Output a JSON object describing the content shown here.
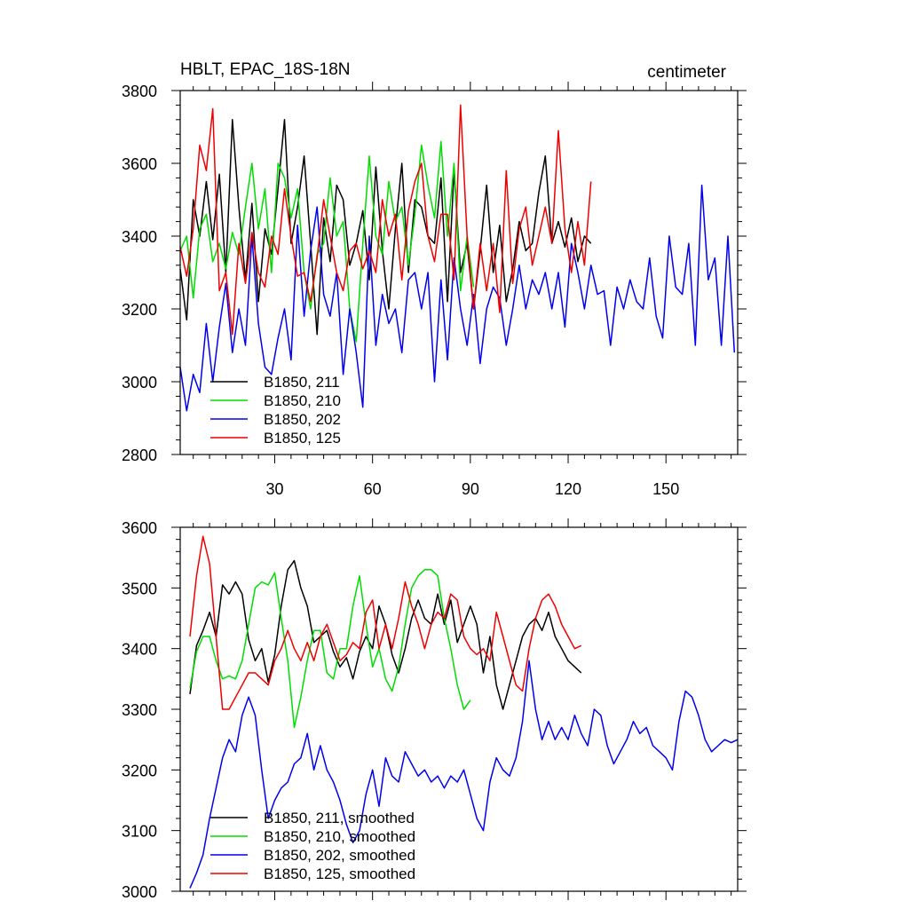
{
  "chart_data": [
    {
      "type": "line",
      "title": "HBLT, EPAC_18S-18N",
      "units_label": "centimeter",
      "xlabel": "",
      "ylabel": "",
      "xlim": [
        1,
        172
      ],
      "ylim": [
        2800,
        3800
      ],
      "x_ticks": [
        30,
        60,
        90,
        120,
        150
      ],
      "y_ticks": [
        2800,
        3000,
        3200,
        3400,
        3600,
        3800
      ],
      "legend_position": "lower-left",
      "series": [
        {
          "name": "B1850, 211",
          "color": "#000000",
          "x": [
            1,
            3,
            5,
            7,
            9,
            11,
            13,
            15,
            17,
            19,
            21,
            23,
            25,
            27,
            29,
            31,
            33,
            35,
            37,
            39,
            41,
            43,
            45,
            47,
            49,
            51,
            53,
            55,
            57,
            59,
            61,
            63,
            65,
            67,
            69,
            71,
            73,
            75,
            77,
            79,
            81,
            83,
            85,
            87,
            89,
            91,
            93,
            95,
            97,
            99,
            101,
            103,
            105,
            107,
            109,
            111,
            113,
            115,
            117,
            119,
            121,
            123,
            125,
            127
          ],
          "values": [
            3310,
            3170,
            3500,
            3400,
            3550,
            3390,
            3570,
            3300,
            3720,
            3480,
            3280,
            3490,
            3220,
            3420,
            3350,
            3530,
            3720,
            3380,
            3480,
            3620,
            3380,
            3130,
            3450,
            3330,
            3540,
            3500,
            3320,
            3380,
            3470,
            3280,
            3590,
            3360,
            3200,
            3420,
            3600,
            3300,
            3500,
            3480,
            3400,
            3380,
            3560,
            3220,
            3580,
            3300,
            3380,
            3200,
            3360,
            3540,
            3300,
            3430,
            3220,
            3310,
            3440,
            3360,
            3380,
            3520,
            3620,
            3380,
            3440,
            3370,
            3450,
            3330,
            3400,
            3380
          ]
        },
        {
          "name": "B1850, 210",
          "color": "#00dd00",
          "x": [
            1,
            3,
            5,
            7,
            9,
            11,
            13,
            15,
            17,
            19,
            21,
            23,
            25,
            27,
            29,
            31,
            33,
            35,
            37,
            39,
            41,
            43,
            45,
            47,
            49,
            51,
            53,
            55,
            57,
            59,
            61,
            63,
            65,
            67,
            69,
            71,
            73,
            75,
            77,
            79,
            81,
            83,
            85,
            87,
            89,
            91
          ],
          "values": [
            3360,
            3400,
            3230,
            3420,
            3460,
            3330,
            3380,
            3310,
            3410,
            3350,
            3480,
            3600,
            3420,
            3530,
            3300,
            3600,
            3560,
            3450,
            3530,
            3300,
            3200,
            3350,
            3380,
            3560,
            3400,
            3440,
            3200,
            3110,
            3380,
            3620,
            3400,
            3350,
            3550,
            3440,
            3480,
            3320,
            3460,
            3650,
            3540,
            3450,
            3660,
            3400,
            3600,
            3250,
            3400,
            3260
          ]
        },
        {
          "name": "B1850, 202",
          "color": "#0000ee",
          "x": [
            1,
            3,
            5,
            7,
            9,
            11,
            13,
            15,
            17,
            19,
            21,
            23,
            25,
            27,
            29,
            31,
            33,
            35,
            37,
            39,
            41,
            43,
            45,
            47,
            49,
            51,
            53,
            55,
            57,
            59,
            61,
            63,
            65,
            67,
            69,
            71,
            73,
            75,
            77,
            79,
            81,
            83,
            85,
            87,
            89,
            91,
            93,
            95,
            97,
            99,
            101,
            103,
            105,
            107,
            109,
            111,
            113,
            115,
            117,
            119,
            121,
            123,
            125,
            127,
            129,
            131,
            133,
            135,
            137,
            139,
            141,
            143,
            145,
            147,
            149,
            151,
            153,
            155,
            157,
            159,
            161,
            163,
            165,
            167,
            169,
            171
          ],
          "values": [
            3040,
            2920,
            3020,
            2970,
            3160,
            3000,
            3150,
            3270,
            3080,
            3200,
            3100,
            3400,
            3160,
            3040,
            3020,
            3120,
            3200,
            3060,
            3430,
            3180,
            3360,
            3480,
            3240,
            3180,
            3300,
            3020,
            3200,
            3080,
            2930,
            3400,
            3100,
            3240,
            3160,
            3200,
            3080,
            3280,
            3300,
            3200,
            3300,
            3000,
            3280,
            3060,
            3340,
            3200,
            3100,
            3240,
            3050,
            3200,
            3260,
            3230,
            3100,
            3200,
            3320,
            3200,
            3280,
            3240,
            3300,
            3200,
            3300,
            3150,
            3380,
            3300,
            3200,
            3320,
            3240,
            3250,
            3100,
            3260,
            3200,
            3280,
            3220,
            3200,
            3340,
            3180,
            3120,
            3400,
            3260,
            3240,
            3380,
            3100,
            3540,
            3280,
            3340,
            3100,
            3400,
            3080
          ]
        },
        {
          "name": "B1850, 125",
          "color": "#ee0000",
          "x": [
            1,
            3,
            5,
            7,
            9,
            11,
            13,
            15,
            17,
            19,
            21,
            23,
            25,
            27,
            29,
            31,
            33,
            35,
            37,
            39,
            41,
            43,
            45,
            47,
            49,
            51,
            53,
            55,
            57,
            59,
            61,
            63,
            65,
            67,
            69,
            71,
            73,
            75,
            77,
            79,
            81,
            83,
            85,
            87,
            89,
            91,
            93,
            95,
            97,
            99,
            101,
            103,
            105,
            107,
            109,
            111,
            113,
            115,
            117,
            119,
            121,
            123,
            125,
            127
          ],
          "values": [
            3370,
            3290,
            3420,
            3650,
            3580,
            3750,
            3250,
            3300,
            3130,
            3380,
            3270,
            3410,
            3300,
            3260,
            3400,
            3350,
            3530,
            3400,
            3290,
            3300,
            3220,
            3340,
            3500,
            3400,
            3300,
            3250,
            3360,
            3380,
            3310,
            3360,
            3300,
            3500,
            3400,
            3460,
            3280,
            3470,
            3550,
            3600,
            3400,
            3330,
            3460,
            3460,
            3280,
            3760,
            3400,
            3200,
            3380,
            3250,
            3380,
            3190,
            3580,
            3270,
            3420,
            3480,
            3320,
            3400,
            3480,
            3380,
            3690,
            3420,
            3300,
            3440,
            3320,
            3550
          ]
        }
      ]
    },
    {
      "type": "line",
      "title": "",
      "xlabel": "",
      "ylabel": "",
      "xlim": [
        1,
        172
      ],
      "ylim": [
        3000,
        3600
      ],
      "x_ticks": [
        30,
        60,
        90,
        120,
        150
      ],
      "y_ticks": [
        3000,
        3100,
        3200,
        3300,
        3400,
        3500,
        3600
      ],
      "legend_position": "lower-left",
      "series": [
        {
          "name": "B1850, 211, smoothed",
          "color": "#000000",
          "x": [
            4,
            6,
            8,
            10,
            12,
            14,
            16,
            18,
            20,
            22,
            24,
            26,
            28,
            30,
            32,
            34,
            36,
            38,
            40,
            42,
            44,
            46,
            48,
            50,
            52,
            54,
            56,
            58,
            60,
            62,
            64,
            66,
            68,
            70,
            72,
            74,
            76,
            78,
            80,
            82,
            84,
            86,
            88,
            90,
            92,
            94,
            96,
            98,
            100,
            102,
            104,
            106,
            108,
            110,
            112,
            114,
            116,
            118,
            120,
            122,
            124
          ],
          "values": [
            3325,
            3405,
            3430,
            3460,
            3420,
            3505,
            3490,
            3510,
            3490,
            3415,
            3380,
            3400,
            3345,
            3390,
            3470,
            3530,
            3545,
            3500,
            3470,
            3410,
            3420,
            3430,
            3395,
            3370,
            3385,
            3350,
            3395,
            3420,
            3400,
            3470,
            3440,
            3390,
            3360,
            3400,
            3450,
            3480,
            3450,
            3440,
            3490,
            3440,
            3480,
            3410,
            3440,
            3470,
            3440,
            3360,
            3420,
            3340,
            3300,
            3340,
            3380,
            3420,
            3440,
            3450,
            3430,
            3460,
            3420,
            3400,
            3380,
            3370,
            3360
          ]
        },
        {
          "name": "B1850, 210, smoothed",
          "color": "#00dd00",
          "x": [
            4,
            6,
            8,
            10,
            12,
            14,
            16,
            18,
            20,
            22,
            24,
            26,
            28,
            30,
            32,
            34,
            36,
            38,
            40,
            42,
            44,
            46,
            48,
            50,
            52,
            54,
            56,
            58,
            60,
            62,
            64,
            66,
            68,
            70,
            72,
            74,
            76,
            78,
            80,
            82,
            84,
            86,
            88,
            90
          ],
          "values": [
            3335,
            3395,
            3420,
            3420,
            3380,
            3350,
            3355,
            3350,
            3380,
            3440,
            3500,
            3510,
            3505,
            3525,
            3450,
            3380,
            3270,
            3320,
            3380,
            3430,
            3430,
            3360,
            3350,
            3400,
            3400,
            3470,
            3520,
            3440,
            3370,
            3400,
            3350,
            3330,
            3370,
            3440,
            3500,
            3520,
            3530,
            3530,
            3520,
            3450,
            3400,
            3340,
            3300,
            3315
          ]
        },
        {
          "name": "B1850, 202, smoothed",
          "color": "#0000ee",
          "x": [
            4,
            6,
            8,
            10,
            12,
            14,
            16,
            18,
            20,
            22,
            24,
            26,
            28,
            30,
            32,
            34,
            36,
            38,
            40,
            42,
            44,
            46,
            48,
            50,
            52,
            54,
            56,
            58,
            60,
            62,
            64,
            66,
            68,
            70,
            72,
            74,
            76,
            78,
            80,
            82,
            84,
            86,
            88,
            90,
            92,
            94,
            96,
            98,
            100,
            102,
            104,
            106,
            108,
            110,
            112,
            114,
            116,
            118,
            120,
            122,
            124,
            126,
            128,
            130,
            132,
            134,
            136,
            138,
            140,
            142,
            144,
            146,
            148,
            150,
            152,
            154,
            156,
            158,
            160,
            162,
            164,
            166,
            168,
            170,
            172
          ],
          "values": [
            3005,
            3030,
            3060,
            3120,
            3170,
            3220,
            3250,
            3230,
            3290,
            3320,
            3290,
            3200,
            3120,
            3150,
            3170,
            3180,
            3210,
            3220,
            3260,
            3200,
            3240,
            3200,
            3180,
            3150,
            3110,
            3080,
            3100,
            3160,
            3200,
            3140,
            3220,
            3190,
            3180,
            3230,
            3210,
            3190,
            3200,
            3180,
            3190,
            3170,
            3190,
            3180,
            3200,
            3160,
            3120,
            3100,
            3180,
            3220,
            3200,
            3190,
            3220,
            3280,
            3380,
            3300,
            3250,
            3280,
            3250,
            3270,
            3250,
            3290,
            3260,
            3240,
            3300,
            3290,
            3240,
            3210,
            3230,
            3250,
            3280,
            3260,
            3270,
            3240,
            3230,
            3220,
            3200,
            3280,
            3330,
            3320,
            3290,
            3250,
            3230,
            3240,
            3250,
            3245,
            3250
          ]
        },
        {
          "name": "B1850, 125, smoothed",
          "color": "#ee0000",
          "x": [
            4,
            6,
            8,
            10,
            12,
            14,
            16,
            18,
            20,
            22,
            24,
            26,
            28,
            30,
            32,
            34,
            36,
            38,
            40,
            42,
            44,
            46,
            48,
            50,
            52,
            54,
            56,
            58,
            60,
            62,
            64,
            66,
            68,
            70,
            72,
            74,
            76,
            78,
            80,
            82,
            84,
            86,
            88,
            90,
            92,
            94,
            96,
            98,
            100,
            102,
            104,
            106,
            108,
            110,
            112,
            114,
            116,
            118,
            120,
            122,
            124
          ],
          "values": [
            3420,
            3520,
            3585,
            3540,
            3420,
            3300,
            3300,
            3320,
            3340,
            3360,
            3360,
            3350,
            3340,
            3380,
            3400,
            3430,
            3400,
            3380,
            3410,
            3380,
            3420,
            3440,
            3410,
            3380,
            3390,
            3410,
            3400,
            3460,
            3480,
            3400,
            3440,
            3400,
            3450,
            3510,
            3470,
            3440,
            3400,
            3440,
            3460,
            3450,
            3490,
            3480,
            3420,
            3400,
            3390,
            3400,
            3380,
            3460,
            3420,
            3380,
            3340,
            3330,
            3400,
            3450,
            3480,
            3490,
            3470,
            3440,
            3420,
            3400,
            3405
          ]
        }
      ]
    }
  ]
}
